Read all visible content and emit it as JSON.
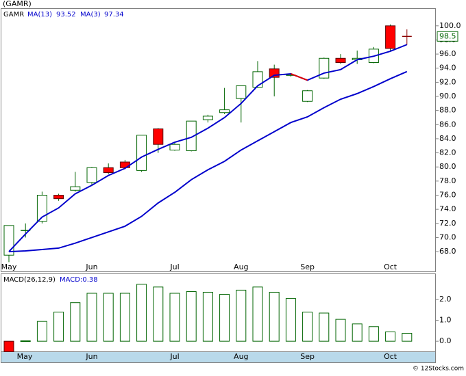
{
  "chart_data": [
    {
      "type": "candlestick",
      "title": "(GAMR)",
      "symbol": "GAMR",
      "categories": [
        "May",
        null,
        null,
        null,
        null,
        "Jun",
        null,
        null,
        null,
        null,
        "Jul",
        null,
        null,
        null,
        "Aug",
        null,
        null,
        null,
        "Sep",
        null,
        null,
        null,
        null,
        "Oct",
        null
      ],
      "open": [
        67.5,
        71.0,
        72.3,
        76.0,
        76.7,
        77.8,
        79.9,
        80.7,
        79.5,
        85.4,
        82.4,
        82.3,
        86.7,
        87.7,
        89.7,
        91.3,
        93.9,
        93.0,
        89.3,
        92.6,
        95.4,
        95.2,
        94.8,
        100.0,
        98.5
      ],
      "high": [
        71.7,
        72.0,
        76.5,
        76.2,
        79.3,
        80.0,
        80.5,
        81.0,
        84.5,
        85.5,
        83.4,
        86.5,
        87.4,
        91.2,
        91.5,
        95.0,
        94.5,
        93.2,
        90.9,
        95.5,
        96.0,
        96.5,
        97.0,
        100.2,
        99.5
      ],
      "low": [
        66.5,
        70.0,
        72.0,
        75.2,
        76.5,
        77.5,
        79.0,
        79.7,
        79.3,
        82.0,
        82.3,
        82.2,
        86.3,
        87.5,
        86.3,
        91.2,
        90.0,
        92.8,
        89.2,
        92.5,
        94.6,
        94.6,
        94.7,
        96.4,
        97.3
      ],
      "close": [
        71.7,
        71.0,
        76.0,
        75.5,
        77.2,
        79.9,
        79.2,
        79.9,
        84.5,
        83.2,
        83.2,
        86.5,
        87.2,
        88.1,
        91.5,
        93.5,
        92.7,
        93.0,
        90.8,
        95.4,
        94.8,
        95.4,
        96.7,
        96.8,
        98.5
      ],
      "up_color": "#006400",
      "down_color": "#ff0000",
      "doji_colors": [
        "#006400",
        "#8b0000"
      ],
      "series": [
        {
          "name": "MA(13)",
          "color": "#0000cc",
          "legend_value": 93.52,
          "values": [
            68.0,
            68.1,
            68.3,
            68.5,
            69.2,
            70.0,
            70.8,
            71.6,
            73.0,
            74.9,
            76.4,
            78.2,
            79.6,
            80.8,
            82.4,
            83.7,
            85.0,
            86.3,
            87.1,
            88.4,
            89.6,
            90.4,
            91.4,
            92.5,
            93.52
          ]
        },
        {
          "name": "MA(3)",
          "color": "#0000cc",
          "down_color": "#e00000",
          "legend_value": 97.34,
          "values": [
            68.0,
            70.5,
            72.9,
            74.2,
            76.2,
            77.4,
            78.8,
            79.8,
            81.4,
            82.5,
            83.5,
            84.2,
            85.5,
            87.0,
            89.0,
            91.5,
            93.0,
            93.2,
            92.3,
            93.3,
            93.8,
            95.2,
            95.7,
            96.4,
            97.34
          ]
        }
      ],
      "last_price": 98.5,
      "ylim": [
        65.1,
        102.5
      ],
      "yticks": [
        {
          "value": 68,
          "label": "68.0"
        },
        {
          "value": 70,
          "label": "70.0"
        },
        {
          "value": 72,
          "label": "72.0"
        },
        {
          "value": 74,
          "label": "74.0"
        },
        {
          "value": 76,
          "label": "76.0"
        },
        {
          "value": 78,
          "label": "78.0"
        },
        {
          "value": 80,
          "label": "80.0"
        },
        {
          "value": 82,
          "label": "82.0"
        },
        {
          "value": 84,
          "label": "84.0"
        },
        {
          "value": 86,
          "label": "86.0"
        },
        {
          "value": 88,
          "label": "88.0"
        },
        {
          "value": 90,
          "label": "90.0"
        },
        {
          "value": 92,
          "label": "92.0"
        },
        {
          "value": 94,
          "label": "94.0"
        },
        {
          "value": 96,
          "label": "96.0"
        },
        {
          "value": 98,
          "label": "98.0"
        },
        {
          "value": 100,
          "label": "100.0"
        }
      ]
    },
    {
      "type": "bar",
      "title": "MACD(26,12,9)",
      "value_text": "MACD:0.38",
      "values": [
        -0.5,
        0.02,
        0.95,
        1.4,
        1.85,
        2.3,
        2.3,
        2.3,
        2.73,
        2.6,
        2.3,
        2.38,
        2.35,
        2.25,
        2.45,
        2.6,
        2.35,
        2.05,
        1.4,
        1.35,
        1.05,
        0.83,
        0.7,
        0.45,
        0.38
      ],
      "up_color": "#006400",
      "down_color": "#ff0000",
      "ylim": [
        -0.52,
        3.25
      ],
      "yticks": [
        {
          "value": 0,
          "label": "0.0"
        },
        {
          "value": 1,
          "label": "1.0"
        },
        {
          "value": 2,
          "label": "2.0"
        }
      ]
    }
  ],
  "footer": "© 12Stocks.com"
}
